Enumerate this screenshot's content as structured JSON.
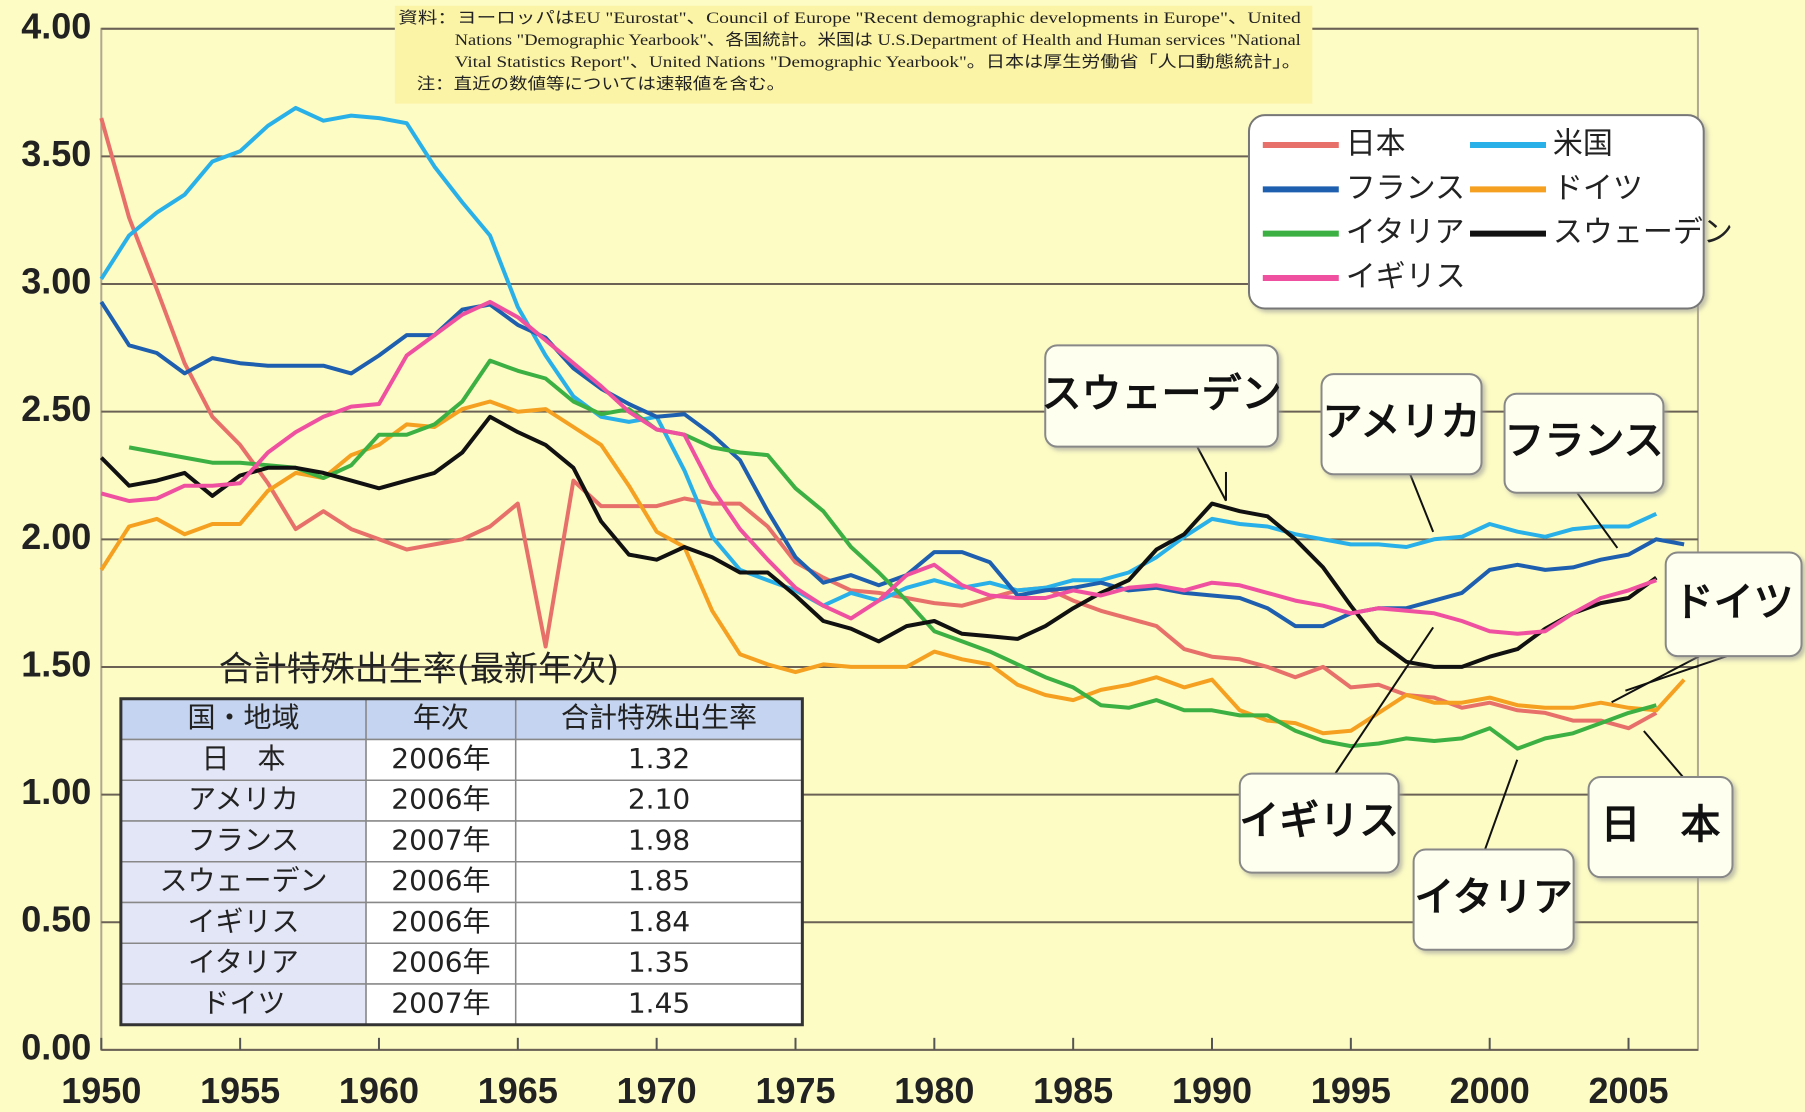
{
  "chart_data": {
    "type": "line",
    "x": [
      1950,
      1951,
      1952,
      1953,
      1954,
      1955,
      1956,
      1957,
      1958,
      1959,
      1960,
      1961,
      1962,
      1963,
      1964,
      1965,
      1966,
      1967,
      1968,
      1969,
      1970,
      1971,
      1972,
      1973,
      1974,
      1975,
      1976,
      1977,
      1978,
      1979,
      1980,
      1981,
      1982,
      1983,
      1984,
      1985,
      1986,
      1987,
      1988,
      1989,
      1990,
      1991,
      1992,
      1993,
      1994,
      1995,
      1996,
      1997,
      1998,
      1999,
      2000,
      2001,
      2002,
      2003,
      2004,
      2005,
      2006,
      2007
    ],
    "series": [
      {
        "name": "日本",
        "color": "#e8706a",
        "values": [
          3.65,
          3.26,
          2.98,
          2.69,
          2.48,
          2.37,
          2.22,
          2.04,
          2.11,
          2.04,
          2.0,
          1.96,
          1.98,
          2.0,
          2.05,
          2.14,
          1.58,
          2.23,
          2.13,
          2.13,
          2.13,
          2.16,
          2.14,
          2.14,
          2.05,
          1.91,
          1.85,
          1.8,
          1.79,
          1.77,
          1.75,
          1.74,
          1.77,
          1.8,
          1.81,
          1.76,
          1.72,
          1.69,
          1.66,
          1.57,
          1.54,
          1.53,
          1.5,
          1.46,
          1.5,
          1.42,
          1.43,
          1.39,
          1.38,
          1.34,
          1.36,
          1.33,
          1.32,
          1.29,
          1.29,
          1.26,
          1.32,
          null
        ]
      },
      {
        "name": "米国",
        "color": "#2ab0e8",
        "values": [
          3.02,
          3.19,
          3.28,
          3.35,
          3.48,
          3.52,
          3.62,
          3.69,
          3.64,
          3.66,
          3.65,
          3.63,
          3.46,
          3.32,
          3.19,
          2.91,
          2.72,
          2.56,
          2.48,
          2.46,
          2.48,
          2.27,
          2.01,
          1.88,
          1.84,
          1.8,
          1.74,
          1.79,
          1.76,
          1.81,
          1.84,
          1.81,
          1.83,
          1.8,
          1.81,
          1.84,
          1.84,
          1.87,
          1.93,
          2.01,
          2.08,
          2.06,
          2.05,
          2.02,
          2.0,
          1.98,
          1.98,
          1.97,
          2.0,
          2.01,
          2.06,
          2.03,
          2.01,
          2.04,
          2.05,
          2.05,
          2.1,
          null
        ]
      },
      {
        "name": "フランス",
        "color": "#1f5fb0",
        "values": [
          2.93,
          2.76,
          2.73,
          2.65,
          2.71,
          2.69,
          2.68,
          2.68,
          2.68,
          2.65,
          2.72,
          2.8,
          2.8,
          2.9,
          2.92,
          2.84,
          2.79,
          2.67,
          2.59,
          2.53,
          2.48,
          2.49,
          2.41,
          2.31,
          2.11,
          1.93,
          1.83,
          1.86,
          1.82,
          1.86,
          1.95,
          1.95,
          1.91,
          1.78,
          1.8,
          1.81,
          1.83,
          1.8,
          1.81,
          1.79,
          1.78,
          1.77,
          1.73,
          1.66,
          1.66,
          1.71,
          1.73,
          1.73,
          1.76,
          1.79,
          1.88,
          1.9,
          1.88,
          1.89,
          1.92,
          1.94,
          2.0,
          1.98
        ]
      },
      {
        "name": "ドイツ",
        "color": "#f5a020",
        "values": [
          1.88,
          2.05,
          2.08,
          2.02,
          2.06,
          2.06,
          2.19,
          2.26,
          2.24,
          2.33,
          2.37,
          2.45,
          2.44,
          2.51,
          2.54,
          2.5,
          2.51,
          2.44,
          2.37,
          2.21,
          2.03,
          1.97,
          1.72,
          1.55,
          1.51,
          1.48,
          1.51,
          1.5,
          1.5,
          1.5,
          1.56,
          1.53,
          1.51,
          1.43,
          1.39,
          1.37,
          1.41,
          1.43,
          1.46,
          1.42,
          1.45,
          1.33,
          1.29,
          1.28,
          1.24,
          1.25,
          1.32,
          1.39,
          1.36,
          1.36,
          1.38,
          1.35,
          1.34,
          1.34,
          1.36,
          1.34,
          1.33,
          1.45
        ]
      },
      {
        "name": "イタリア",
        "color": "#3cb043",
        "values": [
          null,
          2.36,
          2.34,
          2.32,
          2.3,
          2.3,
          2.29,
          2.28,
          2.24,
          2.29,
          2.41,
          2.41,
          2.45,
          2.54,
          2.7,
          2.66,
          2.63,
          2.54,
          2.49,
          2.51,
          2.43,
          2.41,
          2.36,
          2.34,
          2.33,
          2.2,
          2.11,
          1.97,
          1.87,
          1.76,
          1.64,
          1.6,
          1.56,
          1.51,
          1.46,
          1.42,
          1.35,
          1.34,
          1.37,
          1.33,
          1.33,
          1.31,
          1.31,
          1.25,
          1.21,
          1.19,
          1.2,
          1.22,
          1.21,
          1.22,
          1.26,
          1.18,
          1.22,
          1.24,
          1.28,
          1.32,
          1.35,
          null
        ]
      },
      {
        "name": "スウェーデン",
        "color": "#111111",
        "values": [
          2.32,
          2.21,
          2.23,
          2.26,
          2.17,
          2.25,
          2.28,
          2.28,
          2.26,
          2.23,
          2.2,
          2.23,
          2.26,
          2.34,
          2.48,
          2.42,
          2.37,
          2.28,
          2.07,
          1.94,
          1.92,
          1.97,
          1.93,
          1.87,
          1.87,
          1.78,
          1.68,
          1.65,
          1.6,
          1.66,
          1.68,
          1.63,
          1.62,
          1.61,
          1.66,
          1.73,
          1.79,
          1.84,
          1.96,
          2.02,
          2.14,
          2.11,
          2.09,
          2.0,
          1.89,
          1.74,
          1.6,
          1.52,
          1.5,
          1.5,
          1.54,
          1.57,
          1.65,
          1.71,
          1.75,
          1.77,
          1.85,
          null
        ]
      },
      {
        "name": "イギリス",
        "color": "#f050a0",
        "values": [
          2.18,
          2.15,
          2.16,
          2.21,
          2.21,
          2.22,
          2.34,
          2.42,
          2.48,
          2.52,
          2.53,
          2.72,
          2.8,
          2.88,
          2.93,
          2.87,
          2.78,
          2.69,
          2.6,
          2.5,
          2.43,
          2.41,
          2.2,
          2.04,
          1.92,
          1.81,
          1.74,
          1.69,
          1.76,
          1.86,
          1.9,
          1.82,
          1.78,
          1.77,
          1.77,
          1.8,
          1.78,
          1.81,
          1.82,
          1.8,
          1.83,
          1.82,
          1.79,
          1.76,
          1.74,
          1.71,
          1.73,
          1.72,
          1.71,
          1.68,
          1.64,
          1.63,
          1.64,
          1.71,
          1.77,
          1.8,
          1.84,
          null
        ]
      }
    ],
    "xlim": [
      1950,
      2007.5
    ],
    "xticks": [
      1950,
      1955,
      1960,
      1965,
      1970,
      1975,
      1980,
      1985,
      1990,
      1995,
      2000,
      2005
    ],
    "ylim": [
      0,
      4
    ],
    "yticks": [
      {
        "value": 0,
        "label": "0.00"
      },
      {
        "value": 0.5,
        "label": "0.50"
      },
      {
        "value": 1,
        "label": "1.00"
      },
      {
        "value": 1.5,
        "label": "1.50"
      },
      {
        "value": 2,
        "label": "2.00"
      },
      {
        "value": 2.5,
        "label": "2.50"
      },
      {
        "value": 3,
        "label": "3.00"
      },
      {
        "value": 3.5,
        "label": "3.50"
      },
      {
        "value": 4,
        "label": "4.00"
      }
    ],
    "grid": true,
    "legend": "upper right",
    "annotations": [
      "スウェーデン",
      "アメリカ",
      "フランス",
      "ドイツ",
      "イギリス",
      "イタリア",
      "日　本"
    ]
  },
  "note": [
    "資料：ヨーロッパはEU \"Eurostat\"、Council of Europe \"Recent demographic developments in Europe\"、United",
    "Nations \"Demographic Yearbook\"、各国統計。米国は U.S.Department of Health and Human services \"National",
    "Vital Statistics Report\"、United Nations \"Demographic Yearbook\"。日本は厚生労働省「人口動態統計」。",
    "注：直近の数値等については速報値を含む。"
  ],
  "table": {
    "title": "合計特殊出生率(最新年次)",
    "header": [
      "国・地域",
      "年次",
      "合計特殊出生率"
    ],
    "rows": [
      [
        "日　本",
        "2006年",
        "1.32"
      ],
      [
        "アメリカ",
        "2006年",
        "2.10"
      ],
      [
        "フランス",
        "2007年",
        "1.98"
      ],
      [
        "スウェーデン",
        "2006年",
        "1.85"
      ],
      [
        "イギリス",
        "2006年",
        "1.84"
      ],
      [
        "イタリア",
        "2006年",
        "1.35"
      ],
      [
        "ドイツ",
        "2007年",
        "1.45"
      ]
    ]
  }
}
